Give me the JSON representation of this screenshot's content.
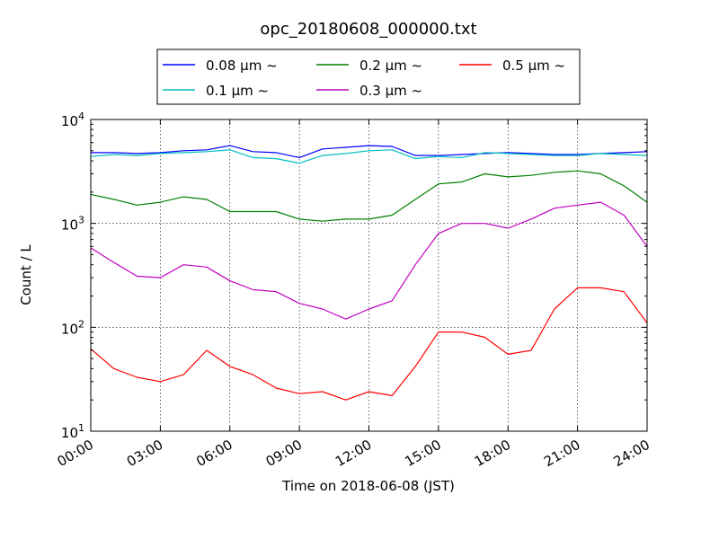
{
  "chart_data": {
    "type": "line",
    "title": "opc_20180608_000000.txt",
    "xlabel": "Time on 2018-06-08 (JST)",
    "ylabel": "Count / L",
    "x_ticks": [
      "00:00",
      "03:00",
      "06:00",
      "09:00",
      "12:00",
      "15:00",
      "18:00",
      "21:00",
      "24:00"
    ],
    "y_scale": "log",
    "ylim": [
      10,
      10000
    ],
    "y_ticks": [
      {
        "value": 10,
        "base": "10",
        "exp": "1"
      },
      {
        "value": 100,
        "base": "10",
        "exp": "2"
      },
      {
        "value": 1000,
        "base": "10",
        "exp": "3"
      },
      {
        "value": 10000,
        "base": "10",
        "exp": "4"
      }
    ],
    "grid": true,
    "legend_position": "top",
    "series": [
      {
        "name": "0.08 μm ~",
        "color": "#0000ff",
        "x": [
          "00:00",
          "01:00",
          "02:00",
          "03:00",
          "04:00",
          "05:00",
          "06:00",
          "07:00",
          "08:00",
          "09:00",
          "10:00",
          "11:00",
          "12:00",
          "13:00",
          "14:00",
          "15:00",
          "16:00",
          "17:00",
          "18:00",
          "19:00",
          "20:00",
          "21:00",
          "22:00",
          "23:00",
          "24:00"
        ],
        "y": [
          4800,
          4800,
          4700,
          4800,
          5000,
          5100,
          5600,
          4900,
          4800,
          4300,
          5200,
          5400,
          5600,
          5500,
          4500,
          4500,
          4600,
          4700,
          4800,
          4700,
          4600,
          4600,
          4700,
          4800,
          4900
        ]
      },
      {
        "name": "0.1 μm ~",
        "color": "#00bfbf",
        "x": [
          "00:00",
          "01:00",
          "02:00",
          "03:00",
          "04:00",
          "05:00",
          "06:00",
          "07:00",
          "08:00",
          "09:00",
          "10:00",
          "11:00",
          "12:00",
          "13:00",
          "14:00",
          "15:00",
          "16:00",
          "17:00",
          "18:00",
          "19:00",
          "20:00",
          "21:00",
          "22:00",
          "23:00",
          "24:00"
        ],
        "y": [
          4400,
          4600,
          4500,
          4700,
          4800,
          4900,
          5100,
          4300,
          4200,
          3800,
          4500,
          4700,
          5000,
          5100,
          4200,
          4400,
          4300,
          4800,
          4700,
          4600,
          4500,
          4500,
          4700,
          4600,
          4500
        ]
      },
      {
        "name": "0.2 μm ~",
        "color": "#008000",
        "x": [
          "00:00",
          "01:00",
          "02:00",
          "03:00",
          "04:00",
          "05:00",
          "06:00",
          "07:00",
          "08:00",
          "09:00",
          "10:00",
          "11:00",
          "12:00",
          "13:00",
          "14:00",
          "15:00",
          "16:00",
          "17:00",
          "18:00",
          "19:00",
          "20:00",
          "21:00",
          "22:00",
          "23:00",
          "24:00"
        ],
        "y": [
          1900,
          1700,
          1500,
          1600,
          1800,
          1700,
          1300,
          1300,
          1300,
          1100,
          1050,
          1100,
          1100,
          1200,
          1700,
          2400,
          2500,
          3000,
          2800,
          2900,
          3100,
          3200,
          3000,
          2300,
          1600
        ]
      },
      {
        "name": "0.3 μm ~",
        "color": "#bf00bf",
        "x": [
          "00:00",
          "01:00",
          "02:00",
          "03:00",
          "04:00",
          "05:00",
          "06:00",
          "07:00",
          "08:00",
          "09:00",
          "10:00",
          "11:00",
          "12:00",
          "13:00",
          "14:00",
          "15:00",
          "16:00",
          "17:00",
          "18:00",
          "19:00",
          "20:00",
          "21:00",
          "22:00",
          "23:00",
          "24:00"
        ],
        "y": [
          580,
          420,
          310,
          300,
          400,
          380,
          280,
          230,
          220,
          170,
          150,
          120,
          150,
          180,
          400,
          800,
          1000,
          1000,
          900,
          1100,
          1400,
          1500,
          1600,
          1200,
          600
        ]
      },
      {
        "name": "0.5 μm ~",
        "color": "#ff0000",
        "x": [
          "00:00",
          "01:00",
          "02:00",
          "03:00",
          "04:00",
          "05:00",
          "06:00",
          "07:00",
          "08:00",
          "09:00",
          "10:00",
          "11:00",
          "12:00",
          "13:00",
          "14:00",
          "15:00",
          "16:00",
          "17:00",
          "18:00",
          "19:00",
          "20:00",
          "21:00",
          "22:00",
          "23:00",
          "24:00"
        ],
        "y": [
          62,
          40,
          33,
          30,
          35,
          60,
          42,
          35,
          26,
          23,
          24,
          20,
          24,
          22,
          42,
          90,
          90,
          80,
          55,
          60,
          150,
          240,
          240,
          220,
          110
        ]
      }
    ]
  }
}
